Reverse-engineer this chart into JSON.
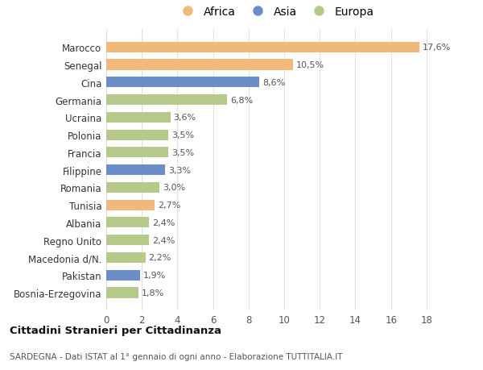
{
  "categories": [
    "Bosnia-Erzegovina",
    "Pakistan",
    "Macedonia d/N.",
    "Regno Unito",
    "Albania",
    "Tunisia",
    "Romania",
    "Filippine",
    "Francia",
    "Polonia",
    "Ucraina",
    "Germania",
    "Cina",
    "Senegal",
    "Marocco"
  ],
  "values": [
    1.8,
    1.9,
    2.2,
    2.4,
    2.4,
    2.7,
    3.0,
    3.3,
    3.5,
    3.5,
    3.6,
    6.8,
    8.6,
    10.5,
    17.6
  ],
  "labels": [
    "1,8%",
    "1,9%",
    "2,2%",
    "2,4%",
    "2,4%",
    "2,7%",
    "3,0%",
    "3,3%",
    "3,5%",
    "3,5%",
    "3,6%",
    "6,8%",
    "8,6%",
    "10,5%",
    "17,6%"
  ],
  "colors": [
    "#b5c98a",
    "#6b8ec8",
    "#b5c98a",
    "#b5c98a",
    "#b5c98a",
    "#f0b87a",
    "#b5c98a",
    "#6b8ec8",
    "#b5c98a",
    "#b5c98a",
    "#b5c98a",
    "#b5c98a",
    "#6b8ec8",
    "#f0b87a",
    "#f0b87a"
  ],
  "africa_color": "#f0b87a",
  "asia_color": "#6b8ec8",
  "europa_color": "#b5c98a",
  "title": "Cittadini Stranieri per Cittadinanza",
  "subtitle": "SARDEGNA - Dati ISTAT al 1° gennaio di ogni anno - Elaborazione TUTTITALIA.IT",
  "xlim": [
    0,
    19
  ],
  "xticks": [
    0,
    2,
    4,
    6,
    8,
    10,
    12,
    14,
    16,
    18
  ],
  "background_color": "#ffffff",
  "grid_color": "#e0e0e0"
}
